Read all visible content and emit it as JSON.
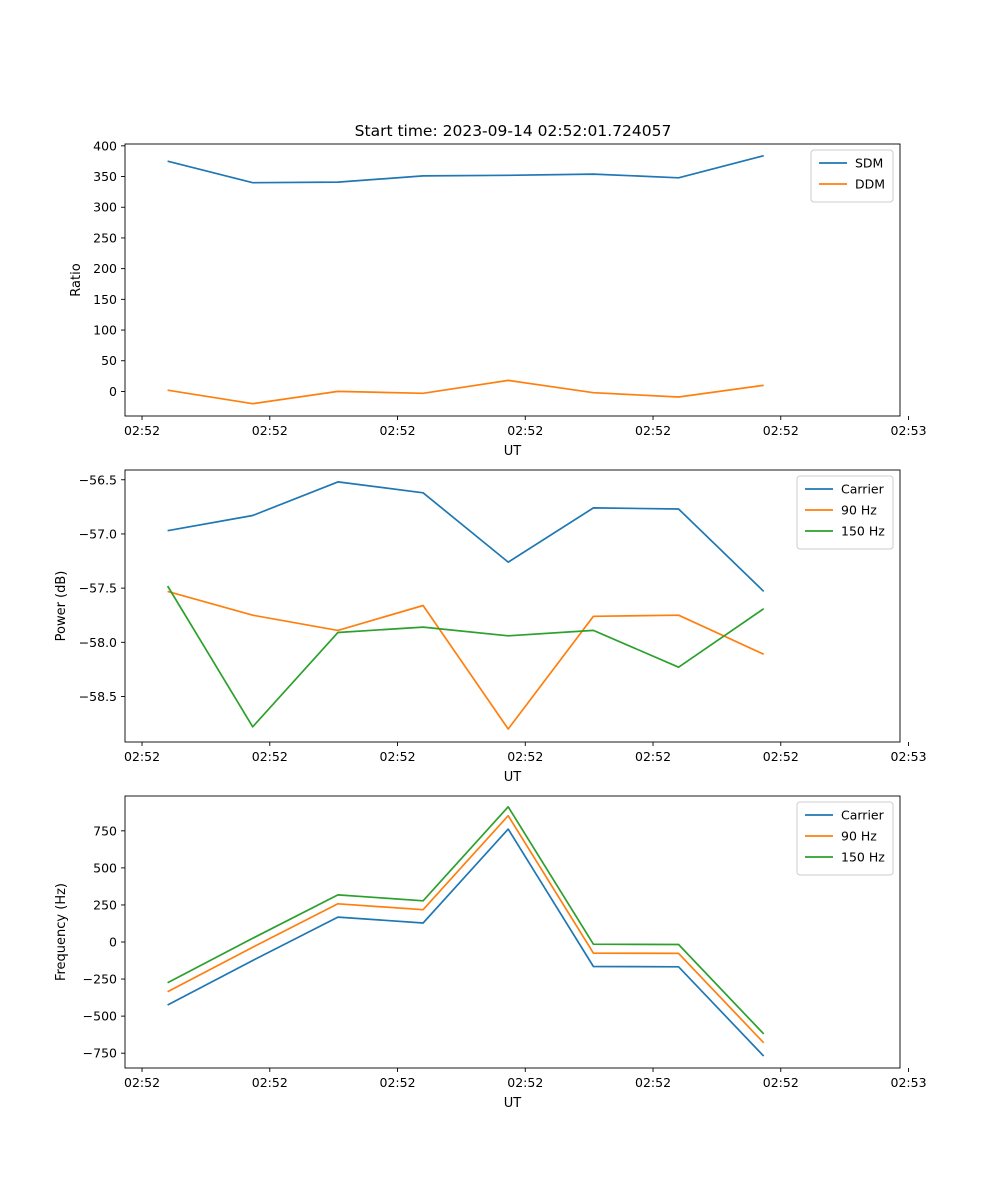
{
  "title": "Start time: 2023-09-14 02:52:01.724057",
  "colors": {
    "blue": "#1f77b4",
    "orange": "#ff7f0e",
    "green": "#2ca02c"
  },
  "chart_data": [
    {
      "type": "line",
      "title": "Start time: 2023-09-14 02:52:01.724057",
      "xlabel": "UT",
      "ylabel": "Ratio",
      "xlim": [
        -0.5,
        8.6
      ],
      "ylim": [
        -40,
        403
      ],
      "x_ticks": [
        -0.3,
        1.2,
        2.7,
        4.2,
        5.7,
        7.2,
        8.7
      ],
      "x_tick_labels": [
        "02:52",
        "02:52",
        "02:52",
        "02:52",
        "02:52",
        "02:52",
        "02:53"
      ],
      "y_ticks": [
        0,
        50,
        100,
        150,
        200,
        250,
        300,
        350,
        400
      ],
      "y_tick_labels": [
        "0",
        "50",
        "100",
        "150",
        "200",
        "250",
        "300",
        "350",
        "400"
      ],
      "legend_position": "top-right",
      "x": [
        0,
        1,
        2,
        3,
        4,
        5,
        6,
        7
      ],
      "series": [
        {
          "name": "SDM",
          "color": "#1f77b4",
          "values": [
            375,
            340,
            341,
            351,
            352,
            354,
            348,
            384
          ]
        },
        {
          "name": "DDM",
          "color": "#ff7f0e",
          "values": [
            2,
            -20,
            0,
            -3,
            18,
            -2,
            -9,
            10
          ]
        }
      ]
    },
    {
      "type": "line",
      "title": "",
      "xlabel": "UT",
      "ylabel": "Power (dB)",
      "xlim": [
        -0.5,
        8.6
      ],
      "ylim": [
        -58.92,
        -56.41
      ],
      "x_ticks": [
        -0.3,
        1.2,
        2.7,
        4.2,
        5.7,
        7.2,
        8.7
      ],
      "x_tick_labels": [
        "02:52",
        "02:52",
        "02:52",
        "02:52",
        "02:52",
        "02:52",
        "02:53"
      ],
      "y_ticks": [
        -58.5,
        -58.0,
        -57.5,
        -57.0,
        -56.5
      ],
      "y_tick_labels": [
        "−58.5",
        "−58.0",
        "−57.5",
        "−57.0",
        "−56.5"
      ],
      "legend_position": "top-right",
      "x": [
        0,
        1,
        2,
        3,
        4,
        5,
        6,
        7
      ],
      "series": [
        {
          "name": "Carrier",
          "color": "#1f77b4",
          "values": [
            -56.97,
            -56.83,
            -56.52,
            -56.62,
            -57.26,
            -56.76,
            -56.77,
            -57.53
          ]
        },
        {
          "name": "90 Hz",
          "color": "#ff7f0e",
          "values": [
            -57.53,
            -57.75,
            -57.89,
            -57.66,
            -58.8,
            -57.76,
            -57.75,
            -58.11
          ]
        },
        {
          "name": "150 Hz",
          "color": "#2ca02c",
          "values": [
            -57.48,
            -58.78,
            -57.91,
            -57.86,
            -57.94,
            -57.89,
            -58.23,
            -57.69
          ]
        }
      ]
    },
    {
      "type": "line",
      "title": "",
      "xlabel": "UT",
      "ylabel": "Frequency (Hz)",
      "xlim": [
        -0.5,
        8.6
      ],
      "ylim": [
        -850,
        985
      ],
      "x_ticks": [
        -0.3,
        1.2,
        2.7,
        4.2,
        5.7,
        7.2,
        8.7
      ],
      "x_tick_labels": [
        "02:52",
        "02:52",
        "02:52",
        "02:52",
        "02:52",
        "02:52",
        "02:53"
      ],
      "y_ticks": [
        -750,
        -500,
        -250,
        0,
        250,
        500,
        750
      ],
      "y_tick_labels": [
        "−750",
        "−500",
        "−250",
        "0",
        "250",
        "500",
        "750"
      ],
      "legend_position": "top-right",
      "x": [
        0,
        1,
        2,
        3,
        4,
        5,
        6,
        7
      ],
      "series": [
        {
          "name": "Carrier",
          "color": "#1f77b4",
          "values": [
            -425,
            -125,
            168,
            128,
            762,
            -165,
            -167,
            -770
          ]
        },
        {
          "name": "90 Hz",
          "color": "#ff7f0e",
          "values": [
            -335,
            -35,
            258,
            218,
            852,
            -75,
            -77,
            -680
          ]
        },
        {
          "name": "150 Hz",
          "color": "#2ca02c",
          "values": [
            -275,
            25,
            318,
            278,
            912,
            -15,
            -17,
            -620
          ]
        }
      ]
    }
  ]
}
